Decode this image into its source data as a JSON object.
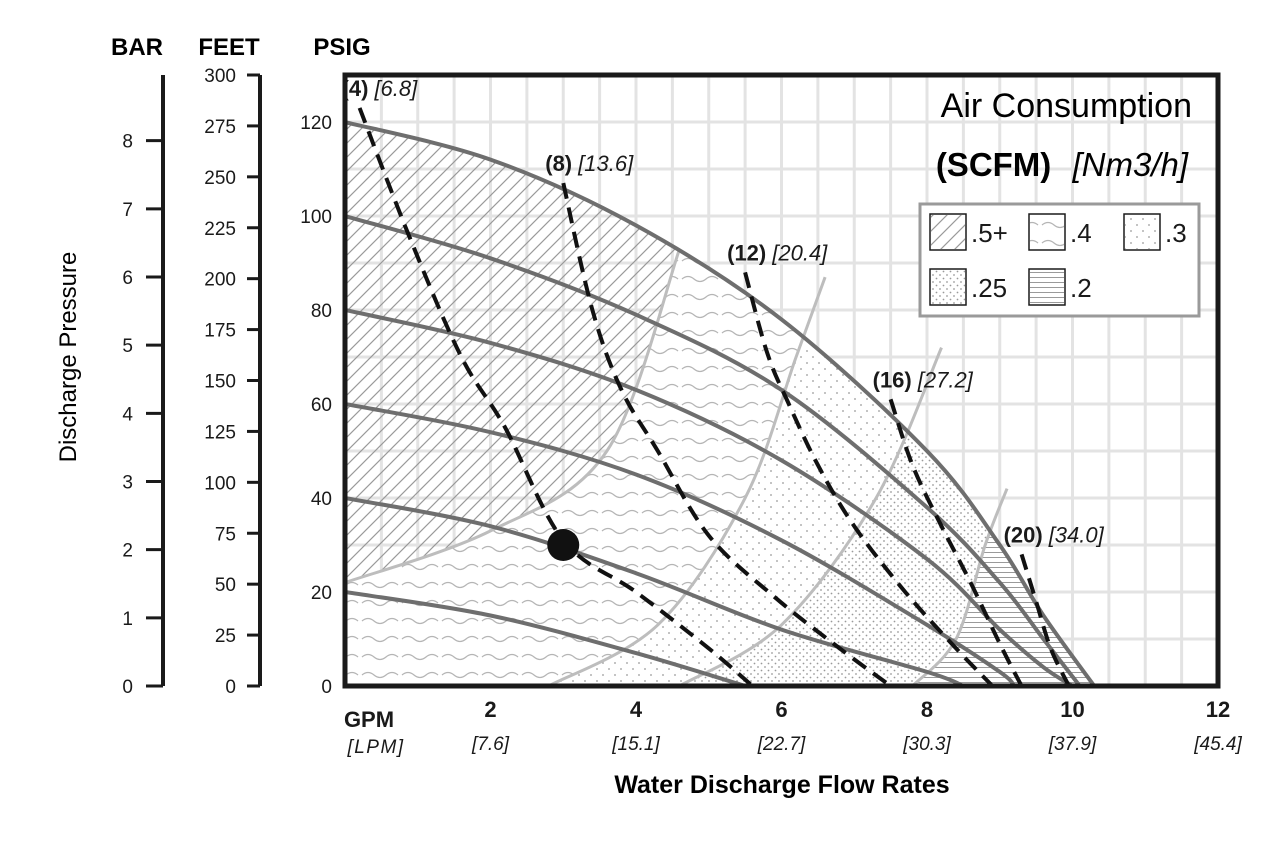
{
  "chart_data": {
    "type": "line",
    "axis_headers": {
      "bar": "BAR",
      "feet": "FEET",
      "psig": "PSIG"
    },
    "ylabel": "Discharge Pressure",
    "xlabel": "Water Discharge Flow Rates",
    "x_unit_primary": "GPM",
    "x_unit_secondary": "[LPM]",
    "xlim": [
      0,
      12
    ],
    "ylim": [
      0,
      130
    ],
    "x_ticks": [
      {
        "value": 2,
        "label": "2",
        "sub": "[7.6]"
      },
      {
        "value": 4,
        "label": "4",
        "sub": "[15.1]"
      },
      {
        "value": 6,
        "label": "6",
        "sub": "[22.7]"
      },
      {
        "value": 8,
        "label": "8",
        "sub": "[30.3]"
      },
      {
        "value": 10,
        "label": "10",
        "sub": "[37.9]"
      },
      {
        "value": 12,
        "label": "12",
        "sub": "[45.4]"
      }
    ],
    "psig_ticks": [
      "0",
      "20",
      "40",
      "60",
      "80",
      "100",
      "120"
    ],
    "feet_ticks": [
      "0",
      "25",
      "50",
      "75",
      "100",
      "125",
      "150",
      "175",
      "200",
      "225",
      "250",
      "275",
      "300"
    ],
    "bar_ticks": [
      "0",
      "1",
      "2",
      "3",
      "4",
      "5",
      "6",
      "7",
      "8"
    ],
    "grid": true,
    "title": "Air Consumption",
    "subtitle_bold": "(SCFM)",
    "subtitle_italic": "[Nm3/h]",
    "legend_placement": "top-right",
    "legend": [
      {
        "label": ".5+",
        "pattern": "hatch"
      },
      {
        "label": ".4",
        "pattern": "wave"
      },
      {
        "label": ".3",
        "pattern": "dots"
      },
      {
        "label": ".25",
        "pattern": "dense-dots"
      },
      {
        "label": ".2",
        "pattern": "horizontal-lines"
      }
    ],
    "pressure_curves": [
      {
        "x": [
          0,
          2,
          4,
          6,
          8,
          9,
          9.6,
          10.3
        ],
        "y": [
          120,
          112,
          98,
          78,
          50,
          30,
          15,
          0
        ]
      },
      {
        "x": [
          0,
          2,
          4,
          6,
          8,
          9,
          9.6,
          10.1
        ],
        "y": [
          100,
          91,
          79,
          63,
          38,
          22,
          10,
          0
        ]
      },
      {
        "x": [
          0,
          2,
          4,
          6,
          8,
          9,
          9.6,
          10.0
        ],
        "y": [
          80,
          73,
          63,
          48,
          27,
          12,
          4,
          0
        ]
      },
      {
        "x": [
          0,
          2,
          4,
          6,
          8,
          9,
          9.2
        ],
        "y": [
          60,
          54,
          45,
          31,
          13,
          3,
          0
        ]
      },
      {
        "x": [
          0,
          2,
          4,
          6,
          8,
          8.5
        ],
        "y": [
          40,
          34,
          24,
          12,
          3,
          0
        ]
      },
      {
        "x": [
          0,
          2,
          4,
          5.5
        ],
        "y": [
          20,
          15,
          7,
          0
        ]
      }
    ],
    "efficiency_boundaries": [
      {
        "x": [
          0,
          2,
          3.6,
          4.6
        ],
        "y": [
          22,
          33,
          50,
          93
        ]
      },
      {
        "x": [
          2.8,
          4.3,
          5.5,
          6.2,
          6.6
        ],
        "y": [
          0,
          13,
          40,
          70,
          87
        ]
      },
      {
        "x": [
          4.6,
          6,
          7.3,
          8.2
        ],
        "y": [
          0,
          13,
          40,
          72
        ]
      },
      {
        "x": [
          7.8,
          8.4,
          8.8,
          9.1
        ],
        "y": [
          0,
          10,
          30,
          42
        ]
      }
    ],
    "air_curves": [
      {
        "label_bold": "(4)",
        "label_italic": "[6.8]",
        "x": [
          0.2,
          0.9,
          1.6,
          2.2,
          3.0,
          4.0,
          5.0,
          5.6
        ],
        "y": [
          123,
          95,
          70,
          55,
          31,
          20,
          8,
          0
        ]
      },
      {
        "label_bold": "(8)",
        "label_italic": "[13.6]",
        "x": [
          3.0,
          3.4,
          3.8,
          4.3,
          5.0,
          5.9,
          6.8,
          7.5
        ],
        "y": [
          107,
          80,
          63,
          50,
          32,
          19,
          8,
          0
        ]
      },
      {
        "label_bold": "(12)",
        "label_italic": "[20.4]",
        "x": [
          5.5,
          5.8,
          6.1,
          6.5,
          7.0,
          7.7,
          8.4,
          8.9
        ],
        "y": [
          88,
          71,
          60,
          47,
          34,
          20,
          8,
          0
        ]
      },
      {
        "label_bold": "(16)",
        "label_italic": "[27.2]",
        "x": [
          7.5,
          7.8,
          8.2,
          8.6,
          9.0,
          9.3
        ],
        "y": [
          61,
          47,
          34,
          22,
          9,
          0
        ]
      },
      {
        "label_bold": "(20)",
        "label_italic": "[34.0]",
        "x": [
          9.3,
          9.5,
          9.7,
          9.95
        ],
        "y": [
          28,
          18,
          8,
          0
        ]
      }
    ],
    "operating_point": {
      "x": 3.0,
      "y": 30
    }
  }
}
